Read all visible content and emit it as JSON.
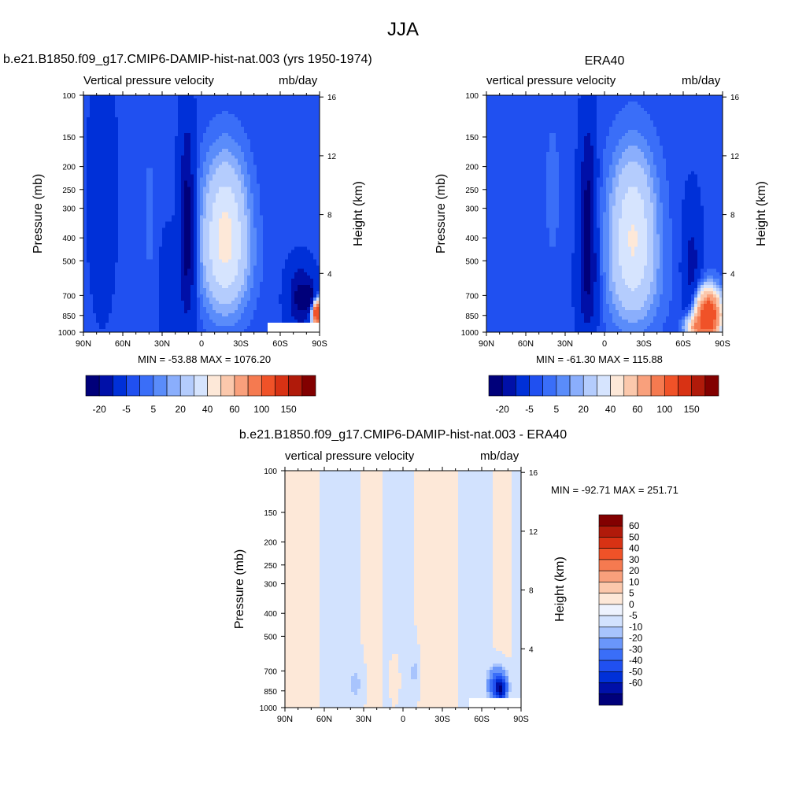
{
  "title": "JJA",
  "colors": {
    "blues": [
      "#00007a",
      "#0010a8",
      "#0030d8",
      "#2050f0",
      "#3a6ef8",
      "#5a8cfa",
      "#8aaefc",
      "#b4ccfd",
      "#d6e4fe"
    ],
    "reds": [
      "#fde8d8",
      "#fbc8ac",
      "#f9a07c",
      "#f57a50",
      "#f05228",
      "#d83214",
      "#b01a0a",
      "#820000"
    ],
    "diff_blues": [
      "#00007a",
      "#0010a8",
      "#0030d8",
      "#2050f0",
      "#3a6ef8",
      "#6a96fb",
      "#a8c4fd",
      "#d2e2fe"
    ],
    "diff_white": "#eef3fe",
    "diff_reds": [
      "#fde8d8",
      "#fbc8ac",
      "#f9a07c",
      "#f57a50",
      "#f05228",
      "#d83214",
      "#b01a0a",
      "#820000"
    ]
  },
  "panels": [
    {
      "name": "b.e21.B1850.f09_g17.CMIP6-DAMIP-hist-nat.003 (yrs 1950-1974)",
      "left_label": "Vertical pressure velocity",
      "right_label": "mb/day",
      "stats": "MIN = -53.88  MAX = 1076.20",
      "ylabel": "Pressure (mb)",
      "ylabel2": "Height (km)"
    },
    {
      "name": "ERA40",
      "left_label": "vertical pressure velocity",
      "right_label": "mb/day",
      "stats": "MIN = -61.30  MAX = 115.88",
      "ylabel": "Pressure (mb)",
      "ylabel2": "Height (km)"
    },
    {
      "name": "b.e21.B1850.f09_g17.CMIP6-DAMIP-hist-nat.003 - ERA40",
      "left_label": "vertical pressure velocity",
      "right_label": "mb/day",
      "stats": "MIN = -92.71  MAX = 251.71",
      "ylabel": "Pressure (mb)",
      "ylabel2": "Height (km)"
    }
  ],
  "chart_data": [
    {
      "type": "heatmap",
      "title": "b.e21.B1850.f09_g17.CMIP6-DAMIP-hist-nat.003 (yrs 1950-1974)",
      "variable": "Vertical pressure velocity",
      "units": "mb/day",
      "x_ticks": [
        "90N",
        "60N",
        "30N",
        "0",
        "30S",
        "60S",
        "90S"
      ],
      "y_ticks": [
        "100",
        "150",
        "200",
        "250",
        "300",
        "400",
        "500",
        "700",
        "850",
        "1000"
      ],
      "y2_ticks": [
        "16",
        "12",
        "8",
        "4"
      ],
      "ylabel": "Pressure (mb)",
      "y2label": "Height (km)",
      "colorbar_labels": [
        "-20",
        "-5",
        "5",
        "20",
        "40",
        "60",
        "100",
        "150"
      ],
      "min": -53.88,
      "max": 1076.2
    },
    {
      "type": "heatmap",
      "title": "ERA40",
      "variable": "vertical pressure velocity",
      "units": "mb/day",
      "x_ticks": [
        "90N",
        "60N",
        "30N",
        "0",
        "30S",
        "60S",
        "90S"
      ],
      "y_ticks": [
        "100",
        "150",
        "200",
        "250",
        "300",
        "400",
        "500",
        "700",
        "850",
        "1000"
      ],
      "y2_ticks": [
        "16",
        "12",
        "8",
        "4"
      ],
      "ylabel": "Pressure (mb)",
      "y2label": "Height (km)",
      "colorbar_labels": [
        "-20",
        "-5",
        "5",
        "20",
        "40",
        "60",
        "100",
        "150"
      ],
      "min": -61.3,
      "max": 115.88
    },
    {
      "type": "heatmap",
      "title": "b.e21.B1850.f09_g17.CMIP6-DAMIP-hist-nat.003 - ERA40",
      "variable": "vertical pressure velocity",
      "units": "mb/day",
      "x_ticks": [
        "90N",
        "60N",
        "30N",
        "0",
        "30S",
        "60S",
        "90S"
      ],
      "y_ticks": [
        "100",
        "150",
        "200",
        "250",
        "300",
        "400",
        "500",
        "700",
        "850",
        "1000"
      ],
      "y2_ticks": [
        "16",
        "12",
        "8",
        "4"
      ],
      "ylabel": "Pressure (mb)",
      "y2label": "Height (km)",
      "colorbar_labels": [
        "60",
        "50",
        "40",
        "30",
        "20",
        "10",
        "5",
        "0",
        "-5",
        "-10",
        "-20",
        "-30",
        "-40",
        "-50",
        "-60"
      ],
      "min": -92.71,
      "max": 251.71
    }
  ]
}
